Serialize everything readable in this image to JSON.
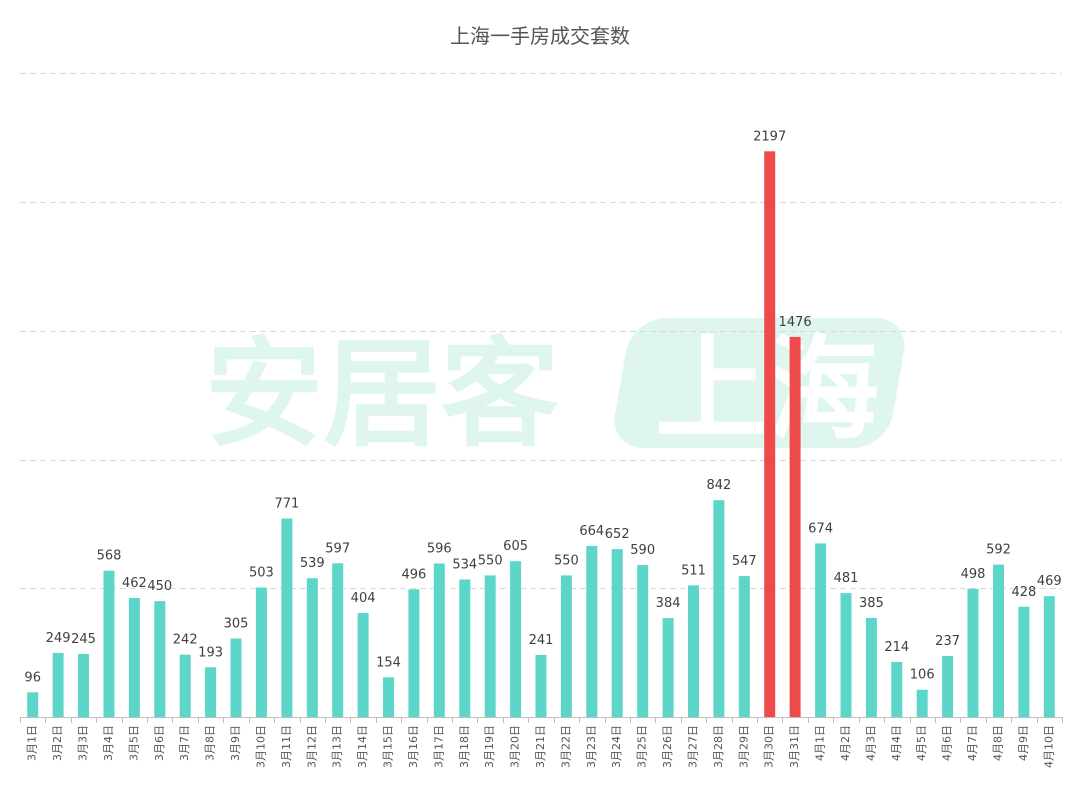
{
  "chart_data": {
    "type": "bar",
    "title": "上海一手房成交套数",
    "xlabel": "",
    "ylabel": "",
    "ylim": [
      0,
      2500
    ],
    "gridlines": [
      500,
      1000,
      1500,
      2000,
      2500
    ],
    "grid": "horizontal dashed",
    "categories": [
      "3月1日",
      "3月2日",
      "3月3日",
      "3月4日",
      "3月5日",
      "3月6日",
      "3月7日",
      "3月8日",
      "3月9日",
      "3月10日",
      "3月11日",
      "3月12日",
      "3月13日",
      "3月14日",
      "3月15日",
      "3月16日",
      "3月17日",
      "3月18日",
      "3月19日",
      "3月20日",
      "3月21日",
      "3月22日",
      "3月23日",
      "3月24日",
      "3月25日",
      "3月26日",
      "3月27日",
      "3月28日",
      "3月29日",
      "3月30日",
      "3月31日",
      "4月1日",
      "4月2日",
      "4月3日",
      "4月4日",
      "4月5日",
      "4月6日",
      "4月7日",
      "4月8日",
      "4月9日",
      "4月10日"
    ],
    "values": [
      96,
      249,
      245,
      568,
      462,
      450,
      242,
      193,
      305,
      503,
      771,
      539,
      597,
      404,
      154,
      496,
      596,
      534,
      550,
      605,
      241,
      550,
      664,
      652,
      590,
      384,
      511,
      842,
      547,
      2197,
      1476,
      674,
      481,
      385,
      214,
      106,
      237,
      498,
      592,
      428,
      469
    ],
    "highlight_categories": [
      "3月30日",
      "3月31日"
    ]
  },
  "colors": {
    "bar": "#5cd6c8",
    "highlight": "#ef4a4a",
    "grid": "#d9d9d9",
    "axis": "#bfbfbf"
  },
  "watermark": {
    "brand": "安居客",
    "city": "上海"
  }
}
